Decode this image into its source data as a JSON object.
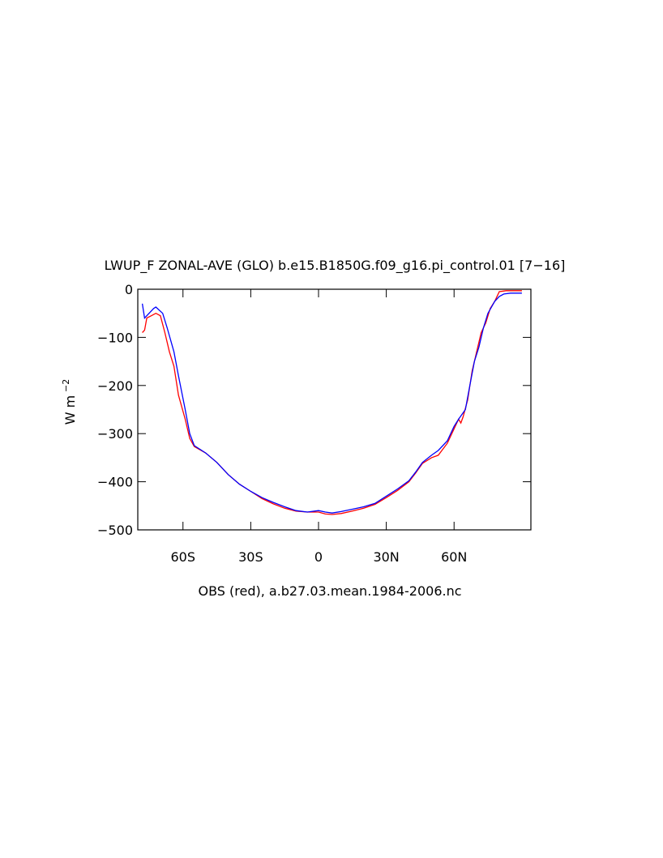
{
  "chart_data": {
    "type": "line",
    "title": "LWUP_F ZONAL-AVE (GLO) b.e15.B1850G.f09_g16.pi_control.01 [7−16]",
    "xlabel": "OBS (red), a.b27.03.mean.1984-2006.nc",
    "ylabel": {
      "text": "W m",
      "superscript": "−2"
    },
    "xlim": [
      -80,
      94
    ],
    "ylim": [
      -500,
      0
    ],
    "xticks": [
      {
        "value": -60,
        "label": "60S"
      },
      {
        "value": -30,
        "label": "30S"
      },
      0,
      {
        "value": 30,
        "label": "30N"
      },
      {
        "value": 60,
        "label": "60N"
      }
    ],
    "yticks": [
      0,
      {
        "value": -100,
        "label": "−100"
      },
      {
        "value": -200,
        "label": "−200"
      },
      {
        "value": -300,
        "label": "−300"
      },
      {
        "value": -400,
        "label": "−400"
      },
      {
        "value": -500,
        "label": "−500"
      }
    ],
    "series": [
      {
        "color": "#0000ff",
        "x": [
          -78,
          -77,
          -73,
          -72,
          -69,
          -67,
          -64,
          -62,
          -59,
          -57,
          -55,
          -50,
          -45,
          -40,
          -35,
          -30,
          -25,
          -20,
          -15,
          -10,
          -5,
          0,
          3,
          6,
          10,
          15,
          20,
          25,
          30,
          35,
          40,
          43,
          46,
          50,
          53,
          57,
          60,
          62,
          65,
          67,
          69,
          71,
          73,
          75,
          78,
          80,
          82,
          85,
          90
        ],
        "values": [
          -30,
          -60,
          -40,
          -37,
          -50,
          -80,
          -130,
          -180,
          -250,
          -300,
          -325,
          -340,
          -360,
          -385,
          -405,
          -420,
          -433,
          -443,
          -452,
          -460,
          -463,
          -460,
          -463,
          -465,
          -462,
          -457,
          -452,
          -445,
          -430,
          -415,
          -398,
          -380,
          -360,
          -345,
          -335,
          -315,
          -285,
          -270,
          -250,
          -200,
          -150,
          -120,
          -80,
          -50,
          -25,
          -15,
          -10,
          -8,
          -8
        ]
      },
      {
        "color": "#ff0000",
        "x": [
          -78,
          -77,
          -76,
          -74,
          -72,
          -70,
          -68,
          -66,
          -64,
          -62,
          -59,
          -57,
          -55,
          -50,
          -45,
          -40,
          -35,
          -30,
          -25,
          -20,
          -15,
          -10,
          -5,
          0,
          3,
          6,
          10,
          15,
          20,
          25,
          30,
          35,
          40,
          43,
          46,
          50,
          53,
          57,
          60,
          62,
          63,
          64,
          66,
          68,
          70,
          72,
          74,
          76,
          78,
          80,
          83,
          86,
          90
        ],
        "values": [
          -90,
          -85,
          -60,
          -55,
          -50,
          -55,
          -90,
          -130,
          -160,
          -220,
          -270,
          -310,
          -327,
          -340,
          -360,
          -385,
          -405,
          -420,
          -435,
          -446,
          -455,
          -461,
          -463,
          -463,
          -467,
          -468,
          -466,
          -461,
          -455,
          -447,
          -433,
          -418,
          -400,
          -382,
          -362,
          -350,
          -345,
          -320,
          -290,
          -270,
          -278,
          -265,
          -230,
          -170,
          -130,
          -90,
          -70,
          -40,
          -25,
          -5,
          -3,
          -3,
          -3
        ]
      }
    ]
  }
}
